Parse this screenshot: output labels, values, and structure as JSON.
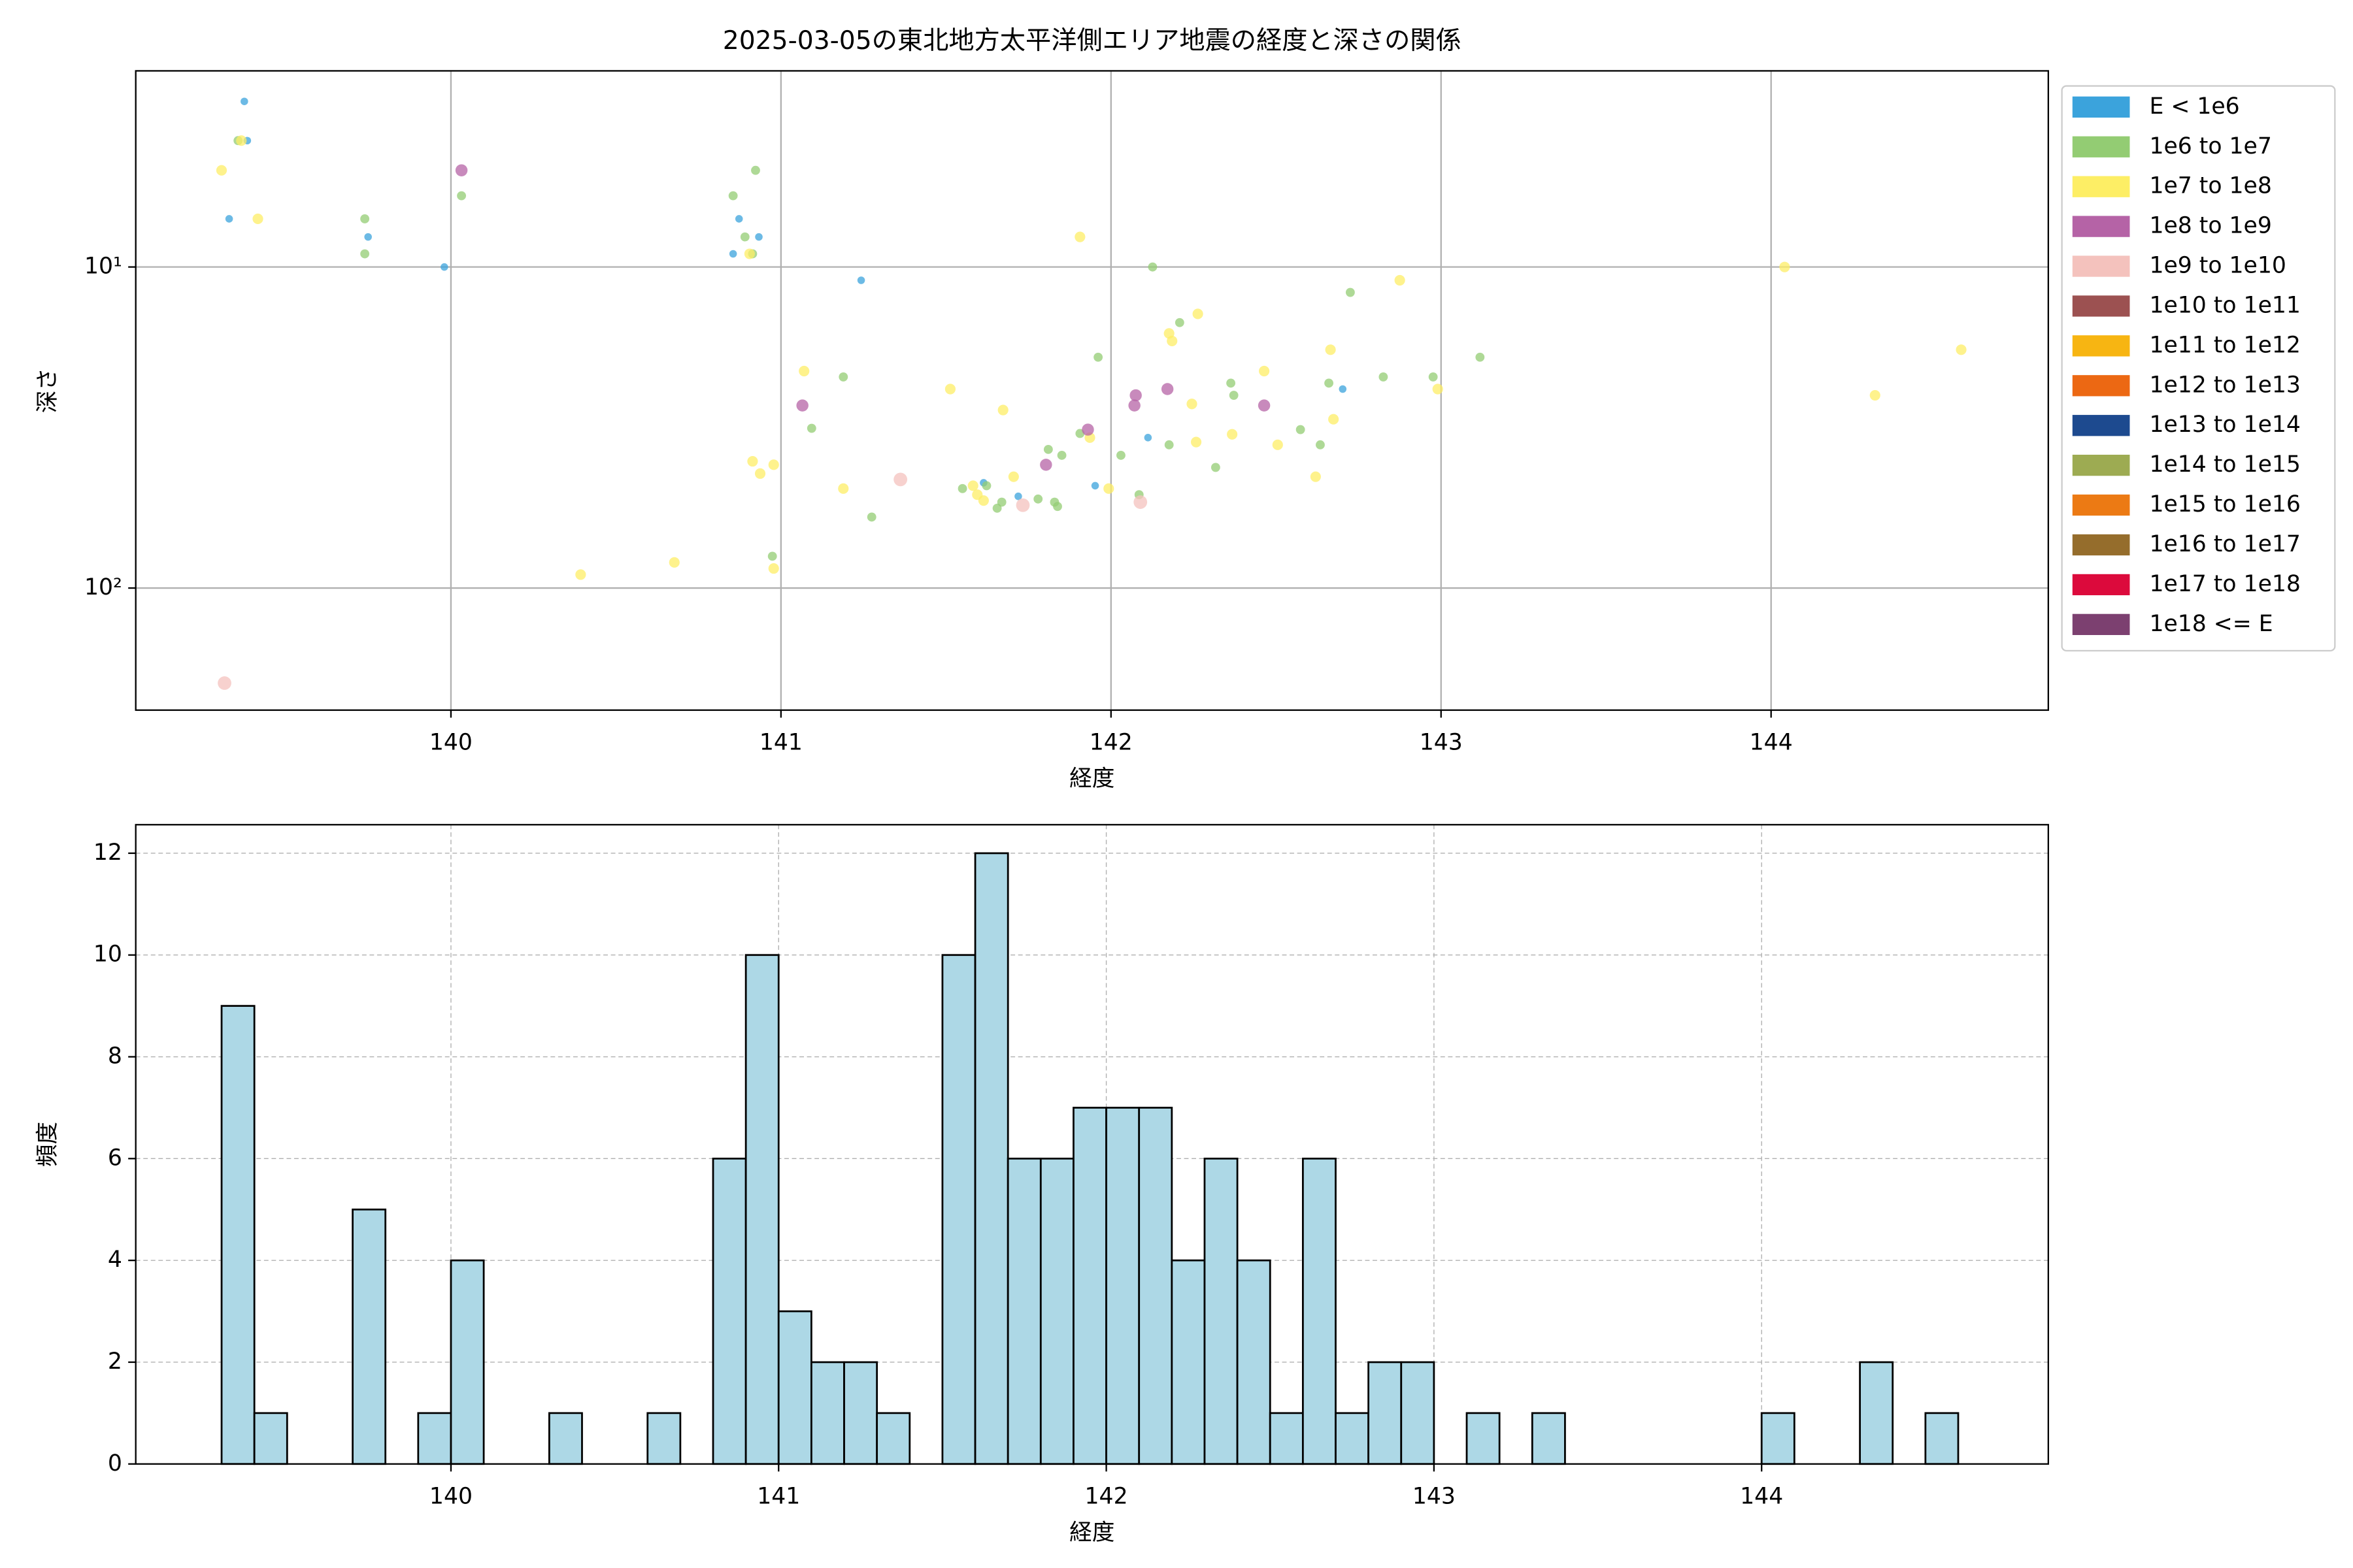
{
  "chart_data": [
    {
      "type": "scatter",
      "title": "2025-03-05の東北地方太平洋側エリア地震の経度と深さの関係",
      "xlabel": "経度",
      "ylabel": "深さ",
      "xlim": [
        139.045,
        144.84
      ],
      "xticks": [
        140,
        141,
        142,
        143,
        144
      ],
      "ylim": [
        2.45,
        240
      ],
      "yscale": "log",
      "y_inverted": true,
      "yticks": [
        {
          "value": 10,
          "label": "10¹"
        },
        {
          "value": 100,
          "label": "10²"
        }
      ],
      "grid": true,
      "grid_style": "solid",
      "legend": "outside right",
      "series": [
        {
          "name": "E < 1e6",
          "color": "#3ba3dc",
          "x": [
            139.374,
            139.383,
            139.328,
            139.749,
            139.98,
            140.873,
            140.933,
            140.855,
            141.243,
            142.702,
            142.112,
            141.952,
            141.614,
            141.719
          ],
          "values": [
            3.05,
            4.04,
            7.08,
            8.06,
            10,
            7.08,
            8.06,
            9.1,
            11.0,
            24.0,
            34.0,
            48.0,
            47.0,
            51.8
          ]
        },
        {
          "name": "1e6 to 1e7",
          "color": "#93cc73",
          "x": [
            139.355,
            140.855,
            140.923,
            139.739,
            139.739,
            140.032,
            140.891,
            140.914,
            142.126,
            142.725,
            142.208,
            141.961,
            141.189,
            141.093,
            142.363,
            142.372,
            142.66,
            142.825,
            142.976,
            143.118,
            142.574,
            142.634,
            142.176,
            142.03,
            141.906,
            141.81,
            141.851,
            142.317,
            141.55,
            141.623,
            141.669,
            141.655,
            141.779,
            141.829,
            141.838,
            142.085,
            141.275,
            140.974
          ],
          "values": [
            4.04,
            6.0,
            5.0,
            7.08,
            9.1,
            6.0,
            8.06,
            9.1,
            10,
            12.0,
            14.9,
            19.1,
            22.0,
            31.8,
            23.0,
            25.1,
            23.0,
            22.0,
            22.0,
            19.1,
            32.1,
            35.8,
            35.8,
            38.6,
            33.0,
            37.0,
            38.6,
            42.1,
            49.0,
            48.0,
            54.0,
            56.4,
            52.8,
            54.0,
            55.7,
            51.2,
            60.1,
            79.6
          ]
        },
        {
          "name": "1e7 to 1e8",
          "color": "#fdee65",
          "x": [
            139.305,
            139.415,
            139.365,
            140.905,
            141.906,
            142.875,
            144.041,
            142.176,
            142.185,
            142.263,
            141.07,
            141.513,
            141.673,
            142.464,
            142.665,
            144.576,
            144.315,
            142.99,
            142.245,
            142.674,
            142.367,
            142.258,
            142.505,
            141.936,
            140.914,
            140.978,
            140.937,
            141.189,
            141.993,
            142.62,
            141.582,
            141.595,
            141.614,
            141.705,
            140.393,
            140.677,
            140.978
          ],
          "values": [
            5.0,
            7.08,
            4.04,
            9.1,
            8.06,
            11.0,
            10,
            16.1,
            17.0,
            14.0,
            21.1,
            24.0,
            27.9,
            21.1,
            18.1,
            18.1,
            25.1,
            24.0,
            26.7,
            29.8,
            33.2,
            35.1,
            35.8,
            34.0,
            40.3,
            41.3,
            44.0,
            49.0,
            49.0,
            45.0,
            48.0,
            51.2,
            53.4,
            45.0,
            90.8,
            83.2,
            86.9
          ]
        },
        {
          "name": "1e8 to 1e9",
          "color": "#b563a6",
          "x": [
            140.032,
            141.065,
            142.075,
            142.071,
            142.171,
            142.464,
            141.93,
            141.803
          ],
          "values": [
            5.0,
            27.0,
            25.1,
            27.0,
            24.0,
            27.0,
            32.1,
            41.3
          ]
        },
        {
          "name": "1e9 to 1e10",
          "color": "#f4c2bd",
          "x": [
            139.314,
            141.362,
            141.733,
            142.089
          ],
          "values": [
            197.7,
            45.9,
            55.2,
            54.0
          ]
        },
        {
          "name": "1e10 to 1e11",
          "color": "#9c5151",
          "x": [],
          "values": []
        },
        {
          "name": "1e11 to 1e12",
          "color": "#f7b512",
          "x": [],
          "values": []
        },
        {
          "name": "1e12 to 1e13",
          "color": "#ec6813",
          "x": [],
          "values": []
        },
        {
          "name": "1e13 to 1e14",
          "color": "#1d4a8f",
          "x": [],
          "values": []
        },
        {
          "name": "1e14 to 1e15",
          "color": "#9dab52",
          "x": [],
          "values": []
        },
        {
          "name": "1e15 to 1e16",
          "color": "#ec7a14",
          "x": [],
          "values": []
        },
        {
          "name": "1e16 to 1e17",
          "color": "#956d2c",
          "x": [],
          "values": []
        },
        {
          "name": "1e17 to 1e18",
          "color": "#dc0a3c",
          "x": [],
          "values": []
        },
        {
          "name": "1e18 <= E",
          "color": "#7c4070",
          "x": [],
          "values": []
        }
      ]
    },
    {
      "type": "histogram",
      "xlabel": "経度",
      "ylabel": "頻度",
      "xlim": [
        139.038,
        144.875
      ],
      "xticks": [
        140,
        141,
        142,
        143,
        144
      ],
      "ylim": [
        0,
        12.56
      ],
      "yticks": [
        0,
        2,
        4,
        6,
        8,
        10,
        12
      ],
      "grid": true,
      "grid_style": "dashed",
      "color": "#add8e6",
      "edgecolor": "#000000",
      "bins": [
        139.3,
        139.4,
        139.5,
        139.6,
        139.7,
        139.8,
        139.9,
        140.0,
        140.1,
        140.2,
        140.3,
        140.4,
        140.5,
        140.6,
        140.7,
        140.8,
        140.9,
        141.0,
        141.1,
        141.2,
        141.3,
        141.4,
        141.5,
        141.6,
        141.7,
        141.8,
        141.9,
        142.0,
        142.1,
        142.2,
        142.3,
        142.4,
        142.5,
        142.6,
        142.7,
        142.8,
        142.9,
        143.0,
        143.1,
        143.2,
        143.3,
        143.4,
        143.5,
        143.6,
        143.7,
        143.8,
        143.9,
        144.0,
        144.1,
        144.2,
        144.3,
        144.4,
        144.5,
        144.6
      ],
      "values": [
        9,
        1,
        0,
        0,
        5,
        0,
        1,
        4,
        0,
        0,
        1,
        0,
        0,
        1,
        0,
        6,
        10,
        3,
        2,
        2,
        1,
        0,
        10,
        12,
        6,
        6,
        7,
        7,
        7,
        4,
        6,
        4,
        1,
        6,
        1,
        2,
        2,
        0,
        1,
        0,
        1,
        0,
        0,
        0,
        0,
        0,
        0,
        1,
        0,
        0,
        2,
        0,
        1
      ]
    }
  ]
}
